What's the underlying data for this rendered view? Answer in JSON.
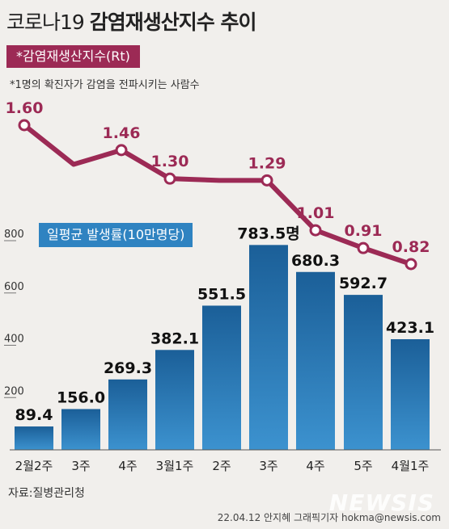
{
  "title": {
    "part1": "코로나19 ",
    "part2": "감염재생산지수 추이"
  },
  "rt_badge": "*감염재생산지수(Rt)",
  "rt_note": "*1명의 확진자가 감염을 전파시키는 사람수",
  "inc_badge": "일평균 발생률(10만명당)",
  "source": "자료:질병관리청",
  "credit": "22.04.12 안지혜 그래픽기자 hokma@newsis.com",
  "watermark": "NEWSIS",
  "colors": {
    "rt_line": "#9c2a55",
    "bar": "#2f83c1",
    "bar_dark": "#1b5f98",
    "background": "#f1efec"
  },
  "chart_data": [
    {
      "type": "bar",
      "categories": [
        "2월2주",
        "3주",
        "4주",
        "3월1주",
        "2주",
        "3주",
        "4주",
        "5주",
        "4월1주"
      ],
      "values": [
        89.4,
        156.0,
        269.3,
        382.1,
        551.5,
        783.5,
        680.3,
        592.7,
        423.1
      ],
      "value_labels": [
        "89.4",
        "156.0",
        "269.3",
        "382.1",
        "551.5",
        "783.5명",
        "680.3",
        "592.7",
        "423.1"
      ],
      "yticks": [
        "200",
        "400",
        "600",
        "800"
      ],
      "ylim": [
        0,
        800
      ],
      "grid": false
    },
    {
      "type": "line",
      "categories": [
        "2월2주",
        "3주",
        "4주",
        "3월1주",
        "2주",
        "3주",
        "4주",
        "5주",
        "4월1주"
      ],
      "values": [
        1.6,
        1.38,
        1.46,
        1.3,
        1.29,
        1.29,
        1.01,
        0.91,
        0.82
      ],
      "value_labels": [
        "1.60",
        "",
        "1.46",
        "1.30",
        "",
        "1.29",
        "1.01",
        "0.91",
        "0.82"
      ]
    }
  ]
}
